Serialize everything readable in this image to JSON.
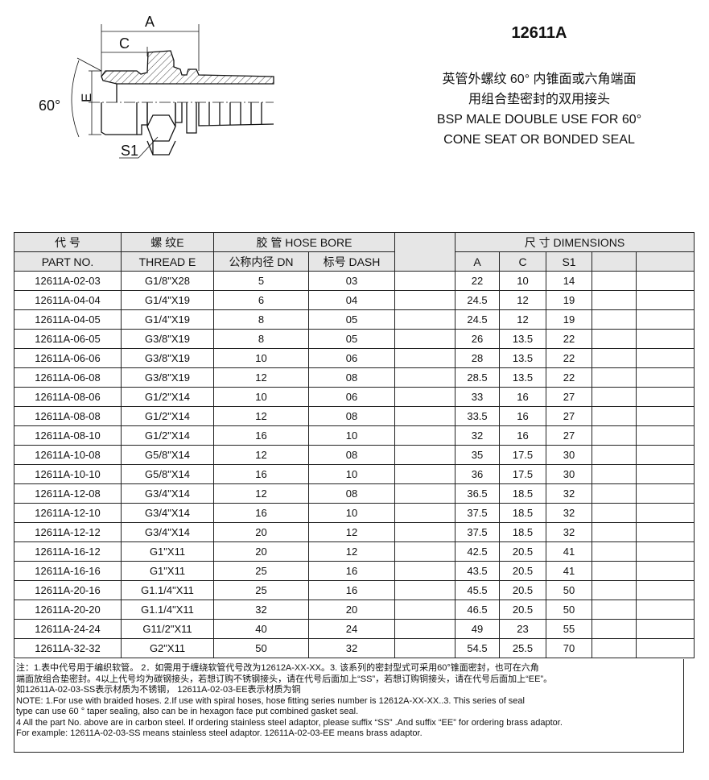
{
  "drawing": {
    "label_a": "A",
    "label_c": "C",
    "label_e": "E",
    "label_angle": "60°",
    "label_s1": "S1"
  },
  "title": "12611A",
  "desc": {
    "zh_line1": "英管外螺纹 60° 内锥面或六角端面",
    "zh_line2": "用组合垫密封的双用接头",
    "en_line1": "BSP MALE DOUBLE USE FOR 60°",
    "en_line2": "CONE SEAT OR BONDED SEAL"
  },
  "table": {
    "header": {
      "part_zh": "代 号",
      "part_en": "PART NO.",
      "thread_zh": "螺 纹E",
      "thread_en": "THREAD  E",
      "hose": "胶 管 HOSE BORE",
      "dn": "公称内径 DN",
      "dash": "标号 DASH",
      "dims": "尺 寸 DIMENSIONS",
      "a": "A",
      "c": "C",
      "s1": "S1"
    },
    "rows": [
      [
        "12611A-02-03",
        "G1/8\"X28",
        "5",
        "03",
        "22",
        "10",
        "14"
      ],
      [
        "12611A-04-04",
        "G1/4\"X19",
        "6",
        "04",
        "24.5",
        "12",
        "19"
      ],
      [
        "12611A-04-05",
        "G1/4\"X19",
        "8",
        "05",
        "24.5",
        "12",
        "19"
      ],
      [
        "12611A-06-05",
        "G3/8\"X19",
        "8",
        "05",
        "26",
        "13.5",
        "22"
      ],
      [
        "12611A-06-06",
        "G3/8\"X19",
        "10",
        "06",
        "28",
        "13.5",
        "22"
      ],
      [
        "12611A-06-08",
        "G3/8\"X19",
        "12",
        "08",
        "28.5",
        "13.5",
        "22"
      ],
      [
        "12611A-08-06",
        "G1/2\"X14",
        "10",
        "06",
        "33",
        "16",
        "27"
      ],
      [
        "12611A-08-08",
        "G1/2\"X14",
        "12",
        "08",
        "33.5",
        "16",
        "27"
      ],
      [
        "12611A-08-10",
        "G1/2\"X14",
        "16",
        "10",
        "32",
        "16",
        "27"
      ],
      [
        "12611A-10-08",
        "G5/8\"X14",
        "12",
        "08",
        "35",
        "17.5",
        "30"
      ],
      [
        "12611A-10-10",
        "G5/8\"X14",
        "16",
        "10",
        "36",
        "17.5",
        "30"
      ],
      [
        "12611A-12-08",
        "G3/4\"X14",
        "12",
        "08",
        "36.5",
        "18.5",
        "32"
      ],
      [
        "12611A-12-10",
        "G3/4\"X14",
        "16",
        "10",
        "37.5",
        "18.5",
        "32"
      ],
      [
        "12611A-12-12",
        "G3/4\"X14",
        "20",
        "12",
        "37.5",
        "18.5",
        "32"
      ],
      [
        "12611A-16-12",
        "G1\"X11",
        "20",
        "12",
        "42.5",
        "20.5",
        "41"
      ],
      [
        "12611A-16-16",
        "G1\"X11",
        "25",
        "16",
        "43.5",
        "20.5",
        "41"
      ],
      [
        "12611A-20-16",
        "G1.1/4\"X11",
        "25",
        "16",
        "45.5",
        "20.5",
        "50"
      ],
      [
        "12611A-20-20",
        "G1.1/4\"X11",
        "32",
        "20",
        "46.5",
        "20.5",
        "50"
      ],
      [
        "12611A-24-24",
        "G11/2\"X11",
        "40",
        "24",
        "49",
        "23",
        "55"
      ],
      [
        "12611A-32-32",
        "G2\"X11",
        "50",
        "32",
        "54.5",
        "25.5",
        "70"
      ]
    ]
  },
  "notes": [
    "注：1.表中代号用于编织软管。  2．如需用于缠绕软管代号改为12612A-XX-XX。3. 该系列的密封型式可采用60°锥面密封，也可在六角",
    " 端面放组合垫密封。4以上代号均为碳钢接头，若想订购不锈钢接头，请在代号后面加上“SS”，若想订购铜接头，请在代号后面加上“EE”。",
    "如12611A-02-03-SS表示材质为不锈钢， 12611A-02-03-EE表示材质为铜",
    " NOTE: 1.For use with braided hoses.    2.If use with spiral hoses, hose fitting series number is 12612A-XX-XX..3. This series of seal",
    "    type can use 60 ° taper sealing, also can be in hexagon face put combined gasket seal.",
    "4 All the part No. above are in carbon steel. If ordering stainless steel adaptor, please suffix “SS” .And suffix “EE” for ordering brass adaptor.",
    "For example: 12611A-02-03-SS  means stainless steel adaptor. 12611A-02-03-EE means brass adaptor."
  ]
}
